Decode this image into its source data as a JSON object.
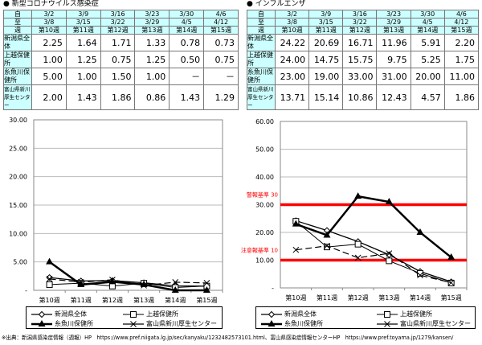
{
  "weeks_from": [
    "3/2",
    "3/9",
    "3/16",
    "3/23",
    "3/30",
    "4/6"
  ],
  "weeks_to": [
    "3/8",
    "3/15",
    "3/22",
    "3/29",
    "4/5",
    "4/12"
  ],
  "week_labels": [
    "第10週",
    "第11週",
    "第12週",
    "第13週",
    "第14週",
    "第15週"
  ],
  "row_headers": {
    "from": "自",
    "to": "至",
    "week": "週"
  },
  "series_names": [
    "新潟県全体",
    "上越保健所",
    "糸魚川保健所",
    "富山県新川厚生センター"
  ],
  "table_row_labels": [
    "新潟県全体",
    "上越保健所",
    "糸魚川保健所",
    "富山県新川厚生センター"
  ],
  "tables": [
    {
      "title": "● 新型コロナウイルス感染症",
      "rows": [
        [
          "2.25",
          "1.64",
          "1.71",
          "1.33",
          "0.78",
          "0.73"
        ],
        [
          "1.00",
          "1.25",
          "0.75",
          "1.25",
          "0.50",
          "0.75"
        ],
        [
          "5.00",
          "1.00",
          "1.50",
          "1.00",
          "－",
          "－"
        ],
        [
          "2.00",
          "1.43",
          "1.86",
          "0.86",
          "1.43",
          "1.29"
        ]
      ]
    },
    {
      "title": "● インフルエンザ",
      "rows": [
        [
          "24.22",
          "20.69",
          "16.71",
          "11.96",
          "5.91",
          "2.20"
        ],
        [
          "24.00",
          "14.75",
          "15.75",
          "9.75",
          "5.25",
          "1.75"
        ],
        [
          "23.00",
          "19.00",
          "33.00",
          "31.00",
          "20.00",
          "11.00"
        ],
        [
          "13.71",
          "15.14",
          "10.86",
          "12.43",
          "4.57",
          "1.86"
        ]
      ]
    }
  ],
  "chart_data": [
    {
      "type": "line",
      "title": "新型コロナウイルス感染症",
      "categories": [
        "第10週",
        "第11週",
        "第12週",
        "第13週",
        "第14週",
        "第15週"
      ],
      "ylim": [
        0,
        30
      ],
      "yticks": [
        "-",
        "5.00",
        "10.00",
        "15.00",
        "20.00",
        "25.00",
        "30.00"
      ],
      "legend": "bottom",
      "series": [
        {
          "name": "新潟県全体",
          "values": [
            2.25,
            1.64,
            1.71,
            1.33,
            0.78,
            0.73
          ]
        },
        {
          "name": "上越保健所",
          "values": [
            1.0,
            1.25,
            0.75,
            1.25,
            0.5,
            0.75
          ]
        },
        {
          "name": "糸魚川保健所",
          "values": [
            5.0,
            1.0,
            1.5,
            1.0,
            0,
            0
          ]
        },
        {
          "name": "富山県新川厚生センター",
          "values": [
            2.0,
            1.43,
            1.86,
            0.86,
            1.43,
            1.29
          ]
        }
      ]
    },
    {
      "type": "line",
      "title": "インフルエンザ",
      "categories": [
        "第10週",
        "第11週",
        "第12週",
        "第13週",
        "第14週",
        "第15週"
      ],
      "ylim": [
        0,
        60
      ],
      "yticks": [
        "-",
        "10.00",
        "20.00",
        "30.00",
        "40.00",
        "50.00",
        "60.00"
      ],
      "legend": "bottom",
      "reference_lines": [
        {
          "label": "警報基準 30",
          "value": 30,
          "color": "#ff0000"
        },
        {
          "label": "注意報基準 10",
          "value": 10,
          "color": "#ff0000"
        }
      ],
      "series": [
        {
          "name": "新潟県全体",
          "values": [
            24.22,
            20.69,
            16.71,
            11.96,
            5.91,
            2.2
          ]
        },
        {
          "name": "上越保健所",
          "values": [
            24.0,
            14.75,
            15.75,
            9.75,
            5.25,
            1.75
          ]
        },
        {
          "name": "糸魚川保健所",
          "values": [
            23.0,
            19.0,
            33.0,
            31.0,
            20.0,
            11.0
          ]
        },
        {
          "name": "富山県新川厚生センター",
          "values": [
            13.71,
            15.14,
            10.86,
            12.43,
            4.57,
            1.86
          ]
        }
      ]
    }
  ],
  "footer": "※出典：新潟県感染症情報（週報）HP　https://www.pref.niigata.lg.jp/sec/kanyaku/1232482573101.html、富山県感染症情報センターHP　https://www.pref.toyama.jp/1279/kansen/"
}
